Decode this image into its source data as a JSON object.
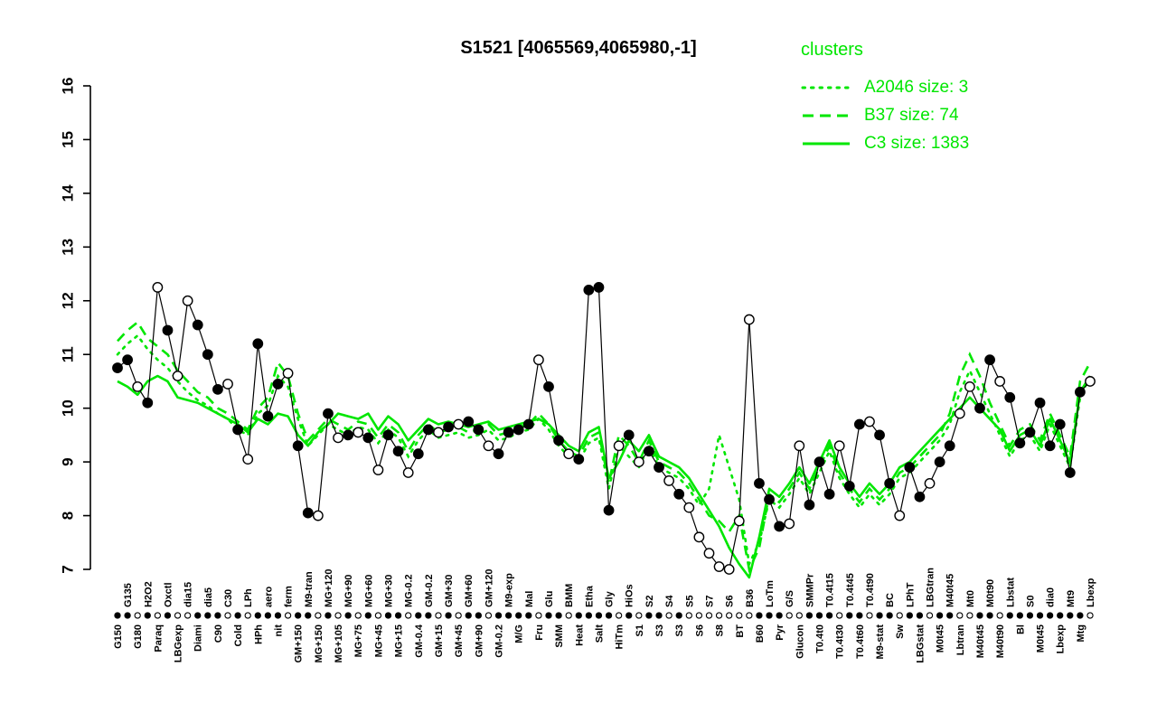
{
  "title": "S1521 [4065569,4065980,-1]",
  "legend": {
    "heading": "clusters",
    "entries": [
      {
        "label": "A2046 size: 3",
        "style": "dotted"
      },
      {
        "label": "B37 size: 74",
        "style": "dashed"
      },
      {
        "label": "C3 size: 1383",
        "style": "solid"
      }
    ]
  },
  "colors": {
    "cluster_green": "#00e600",
    "profile_black": "#000000",
    "background": "#ffffff"
  },
  "chart_data": {
    "type": "line",
    "title": "S1521 [4065569,4065980,-1]",
    "xlabel": "",
    "ylabel": "",
    "ylim": [
      7,
      16
    ],
    "y_ticks": [
      7,
      8,
      9,
      10,
      11,
      12,
      13,
      14,
      15,
      16
    ],
    "grid": false,
    "legend_position": "top-right",
    "x_label_orientation": "vertical-alternating",
    "categories": [
      "G150",
      "G135",
      "G180",
      "H2O2",
      "Paraq",
      "Oxctl",
      "LBGexp",
      "dia15",
      "Diami",
      "dia5",
      "C90",
      "C30",
      "Cold",
      "LPh",
      "HPh",
      "aero",
      "nit",
      "ferm",
      "GM+150",
      "M9-tran",
      "MG+150",
      "MG+120",
      "MG+105",
      "MG+90",
      "MG+75",
      "MG+60",
      "MG+45",
      "MG+30",
      "MG+15",
      "MG-0.2",
      "GM-0.4",
      "GM-0.2",
      "GM+15",
      "GM+30",
      "GM+45",
      "GM+60",
      "GM+90",
      "GM+120",
      "GM-0.2",
      "M9-exp",
      "M/G",
      "Mal",
      "Fru",
      "Glu",
      "SMM",
      "BMM",
      "Heat",
      "Etha",
      "Salt",
      "Gly",
      "HiTm",
      "HiOs",
      "S1",
      "S2",
      "S3",
      "S4",
      "S3",
      "S5",
      "S6",
      "S7",
      "S8",
      "S6",
      "BT",
      "B36",
      "B60",
      "LoTm",
      "Pyr",
      "G/S",
      "Glucon",
      "SMMPr",
      "T0.4t0",
      "T0.4t15",
      "T0.4t30",
      "T0.4t45",
      "T0.4t60",
      "T0.4t90",
      "M9-stat",
      "BC",
      "Sw",
      "LPhT",
      "LBGstat",
      "LBGtran",
      "M0t45",
      "M40t45",
      "Lbtran",
      "Mt0",
      "M40t45",
      "M0t90",
      "M40t90",
      "Lbstat",
      "Bl",
      "S0",
      "M0t45",
      "dia0",
      "Lbexp",
      "Mt9",
      "Mtg",
      "Lbexp"
    ],
    "series": [
      {
        "name": "S1521 profile",
        "role": "gene-profile",
        "style": "points+line",
        "color": "#000000",
        "values": [
          10.75,
          10.9,
          10.4,
          10.1,
          12.25,
          11.45,
          10.6,
          12.0,
          11.55,
          11.0,
          10.35,
          10.45,
          9.6,
          9.05,
          11.2,
          9.85,
          10.45,
          10.65,
          9.3,
          8.05,
          8.0,
          9.9,
          9.45,
          9.5,
          9.55,
          9.45,
          8.85,
          9.5,
          9.2,
          8.8,
          9.15,
          9.6,
          9.55,
          9.65,
          9.7,
          9.75,
          9.6,
          9.3,
          9.15,
          9.55,
          9.6,
          9.7,
          10.9,
          10.4,
          9.4,
          9.15,
          9.05,
          12.2,
          12.25,
          8.1,
          9.3,
          9.5,
          9.0,
          9.2,
          8.9,
          8.65,
          8.4,
          8.15,
          7.6,
          7.3,
          7.05,
          7.0,
          7.9,
          11.65,
          8.6,
          8.3,
          7.8,
          7.85,
          9.3,
          8.2,
          9.0,
          8.4,
          9.3,
          8.55,
          9.7,
          9.75,
          9.5,
          8.6,
          8.0,
          8.9,
          8.35,
          8.6,
          9.0,
          9.3,
          9.9,
          10.4,
          10.0,
          10.9,
          10.5,
          10.2,
          9.35,
          9.55,
          10.1,
          9.3,
          9.7,
          8.8,
          10.3,
          10.5
        ],
        "marker_filled": [
          1,
          1,
          0,
          1,
          0,
          1,
          0,
          0,
          1,
          1,
          1,
          0,
          1,
          0,
          1,
          1,
          1,
          0,
          1,
          1,
          0,
          1,
          0,
          1,
          0,
          1,
          0,
          1,
          1,
          0,
          1,
          1,
          0,
          1,
          0,
          1,
          1,
          0,
          1,
          1,
          1,
          1,
          0,
          1,
          1,
          0,
          1,
          1,
          1,
          1,
          0,
          1,
          0,
          1,
          1,
          0,
          1,
          0,
          0,
          0,
          0,
          0,
          0,
          0,
          1,
          1,
          1,
          0,
          0,
          1,
          1,
          1,
          0,
          1,
          1,
          0,
          1,
          1,
          0,
          1,
          1,
          0,
          1,
          1,
          0,
          0,
          1,
          1,
          0,
          1,
          1,
          1,
          1,
          1,
          1,
          1,
          1,
          0
        ]
      },
      {
        "name": "A2046",
        "role": "cluster-mean",
        "size": 3,
        "style": "dotted",
        "color": "#00e600",
        "values": [
          11.0,
          11.2,
          11.35,
          11.1,
          10.9,
          10.75,
          10.5,
          10.3,
          10.15,
          10.05,
          9.9,
          9.8,
          9.6,
          9.5,
          9.9,
          10.05,
          10.6,
          10.4,
          9.8,
          9.3,
          9.5,
          9.7,
          9.6,
          9.5,
          9.65,
          9.6,
          9.35,
          9.6,
          9.45,
          9.1,
          9.4,
          9.6,
          9.45,
          9.5,
          9.55,
          9.45,
          9.5,
          9.6,
          9.4,
          9.45,
          9.55,
          9.6,
          9.8,
          9.6,
          9.3,
          9.1,
          9.0,
          9.35,
          9.45,
          8.5,
          9.3,
          9.1,
          8.9,
          9.3,
          8.9,
          8.8,
          8.7,
          8.5,
          8.2,
          8.5,
          9.5,
          8.9,
          8.3,
          7.1,
          7.5,
          8.3,
          8.15,
          8.4,
          8.7,
          8.4,
          8.8,
          9.2,
          8.7,
          8.4,
          8.15,
          8.4,
          8.2,
          8.4,
          8.7,
          8.8,
          9.0,
          9.2,
          9.4,
          9.7,
          10.3,
          10.7,
          10.3,
          9.9,
          9.5,
          9.1,
          9.4,
          9.5,
          9.2,
          9.7,
          9.3,
          8.9,
          10.2,
          10.6
        ]
      },
      {
        "name": "B37",
        "role": "cluster-mean",
        "size": 74,
        "style": "dashed",
        "color": "#00e600",
        "values": [
          11.25,
          11.45,
          11.6,
          11.3,
          11.15,
          11.0,
          10.7,
          10.5,
          10.3,
          10.2,
          10.0,
          9.9,
          9.75,
          9.6,
          10.0,
          10.2,
          10.85,
          10.6,
          9.9,
          9.4,
          9.6,
          9.8,
          9.7,
          9.6,
          9.75,
          9.7,
          9.45,
          9.7,
          9.55,
          9.2,
          9.5,
          9.7,
          9.55,
          9.6,
          9.65,
          9.55,
          9.6,
          9.7,
          9.5,
          9.55,
          9.65,
          9.7,
          9.9,
          9.7,
          9.4,
          9.2,
          9.1,
          9.45,
          9.55,
          8.6,
          9.5,
          9.3,
          9.0,
          9.4,
          9.0,
          8.9,
          8.8,
          8.6,
          8.3,
          8.0,
          7.9,
          7.7,
          8.0,
          7.0,
          7.4,
          8.4,
          8.25,
          8.5,
          8.8,
          8.5,
          8.9,
          9.3,
          8.8,
          8.5,
          8.25,
          8.5,
          8.3,
          8.5,
          8.8,
          8.9,
          9.1,
          9.3,
          9.5,
          9.9,
          10.6,
          11.0,
          10.6,
          10.1,
          9.7,
          9.3,
          9.6,
          9.7,
          9.4,
          9.9,
          9.5,
          9.1,
          10.5,
          10.85
        ]
      },
      {
        "name": "C3",
        "role": "cluster-mean",
        "size": 1383,
        "style": "solid",
        "color": "#00e600",
        "values": [
          10.5,
          10.4,
          10.25,
          10.5,
          10.6,
          10.5,
          10.2,
          10.15,
          10.1,
          10.0,
          9.9,
          9.8,
          9.7,
          9.55,
          9.8,
          9.7,
          9.9,
          9.85,
          9.5,
          9.3,
          9.55,
          9.7,
          9.9,
          9.85,
          9.8,
          9.9,
          9.6,
          9.85,
          9.7,
          9.4,
          9.6,
          9.8,
          9.7,
          9.75,
          9.7,
          9.65,
          9.7,
          9.75,
          9.6,
          9.65,
          9.7,
          9.75,
          9.8,
          9.7,
          9.5,
          9.3,
          9.2,
          9.55,
          9.65,
          8.7,
          9.0,
          9.4,
          9.2,
          9.5,
          9.1,
          9.0,
          8.9,
          8.7,
          8.4,
          8.1,
          7.8,
          7.4,
          7.1,
          6.85,
          7.6,
          8.5,
          8.35,
          8.6,
          8.9,
          8.6,
          9.0,
          9.4,
          8.9,
          8.6,
          8.35,
          8.6,
          8.4,
          8.6,
          8.9,
          9.0,
          9.2,
          9.4,
          9.6,
          9.8,
          10.0,
          10.2,
          10.0,
          9.8,
          9.6,
          9.2,
          9.5,
          9.6,
          9.3,
          9.8,
          9.4,
          9.0,
          10.3,
          10.6
        ]
      }
    ]
  }
}
